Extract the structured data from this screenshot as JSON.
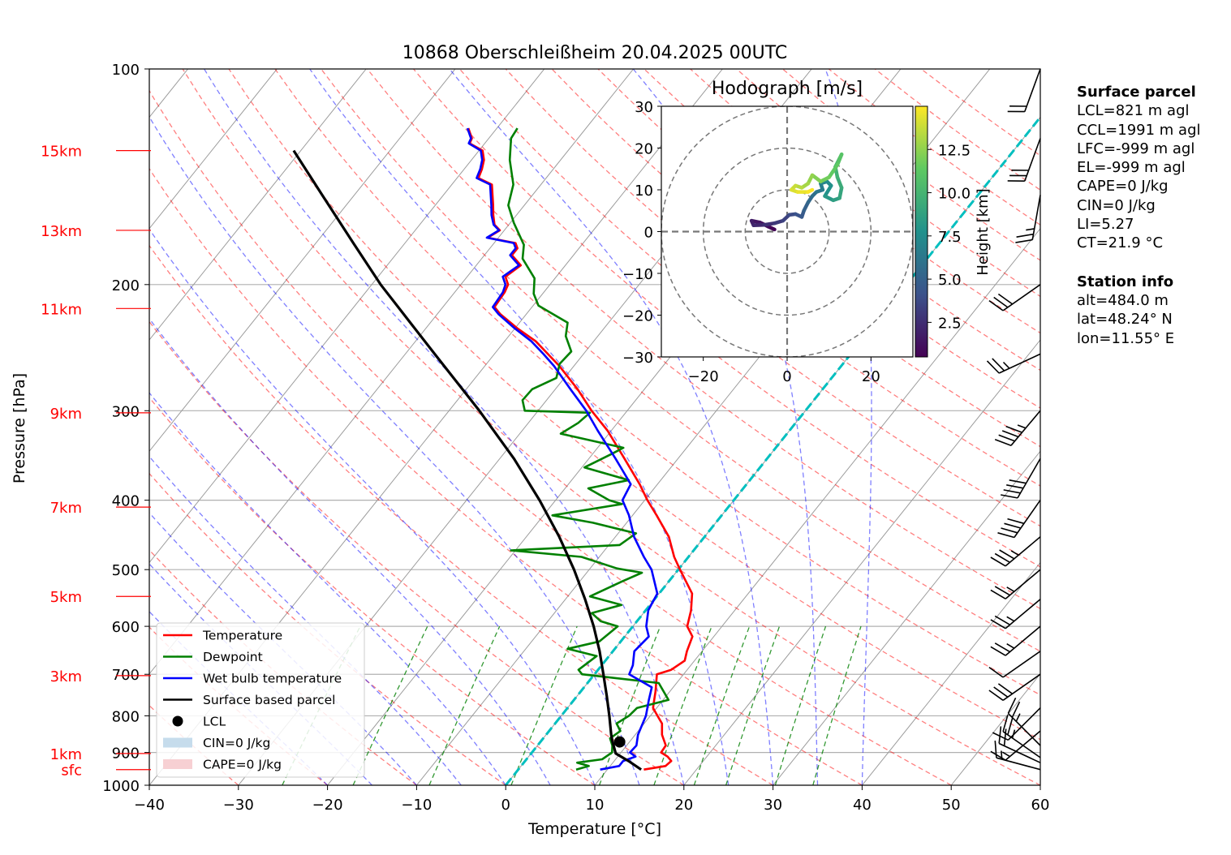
{
  "title": "10868 Oberschleißheim 20.04.2025 00UTC",
  "chart_data": {
    "type": "skew-t",
    "xlabel": "Temperature [°C]",
    "ylabel": "Pressure [hPa]",
    "xlim": [
      -40,
      60
    ],
    "ylim": [
      1000,
      100
    ],
    "x_ticks": [
      -40,
      -30,
      -20,
      -10,
      0,
      10,
      20,
      30,
      40,
      50,
      60
    ],
    "x_tick_labels": [
      "−40",
      "−30",
      "−20",
      "−10",
      "0",
      "10",
      "20",
      "30",
      "40",
      "50",
      "60"
    ],
    "y_ticks": [
      100,
      200,
      300,
      400,
      500,
      600,
      700,
      800,
      900,
      1000
    ],
    "y_tick_labels": [
      "100",
      "200",
      "300",
      "400",
      "500",
      "600",
      "700",
      "800",
      "900",
      "1000"
    ],
    "height_labels": [
      {
        "label": "15km",
        "p": 130
      },
      {
        "label": "13km",
        "p": 168
      },
      {
        "label": "11km",
        "p": 216
      },
      {
        "label": "9km",
        "p": 302
      },
      {
        "label": "7km",
        "p": 409
      },
      {
        "label": "5km",
        "p": 545
      },
      {
        "label": "3km",
        "p": 703
      },
      {
        "label": "1km",
        "p": 903
      },
      {
        "label": "sfc",
        "p": 951
      }
    ],
    "series": [
      {
        "name": "Temperature",
        "color": "#ff0000",
        "points": [
          [
            951,
            14.1
          ],
          [
            940,
            16.2
          ],
          [
            925,
            16.4
          ],
          [
            912,
            15.6
          ],
          [
            900,
            14.5
          ],
          [
            880,
            14.4
          ],
          [
            850,
            13.0
          ],
          [
            820,
            12.0
          ],
          [
            800,
            10.8
          ],
          [
            780,
            9.6
          ],
          [
            760,
            9.0
          ],
          [
            740,
            8.4
          ],
          [
            700,
            7.0
          ],
          [
            690,
            8.2
          ],
          [
            670,
            8.9
          ],
          [
            650,
            8.3
          ],
          [
            620,
            7.6
          ],
          [
            600,
            6.1
          ],
          [
            570,
            5.1
          ],
          [
            540,
            3.7
          ],
          [
            500,
            0.2
          ],
          [
            480,
            -1.6
          ],
          [
            450,
            -4.0
          ],
          [
            420,
            -7.3
          ],
          [
            400,
            -9.7
          ],
          [
            380,
            -12.0
          ],
          [
            350,
            -16.0
          ],
          [
            320,
            -20.4
          ],
          [
            300,
            -24.0
          ],
          [
            280,
            -27.5
          ],
          [
            260,
            -31.6
          ],
          [
            250,
            -34.0
          ],
          [
            240,
            -36.5
          ],
          [
            230,
            -39.8
          ],
          [
            220,
            -42.9
          ],
          [
            215,
            -44.2
          ],
          [
            205,
            -44.4
          ],
          [
            200,
            -44.7
          ],
          [
            195,
            -45.7
          ],
          [
            188,
            -45.0
          ],
          [
            182,
            -46.9
          ],
          [
            178,
            -46.9
          ],
          [
            175,
            -47.6
          ],
          [
            172,
            -51.2
          ],
          [
            168,
            -50.5
          ],
          [
            165,
            -51.6
          ],
          [
            160,
            -52.6
          ],
          [
            155,
            -53.5
          ],
          [
            145,
            -55.5
          ],
          [
            142,
            -57.6
          ],
          [
            138,
            -58.0
          ],
          [
            134,
            -58.6
          ],
          [
            130,
            -59.6
          ],
          [
            127,
            -61.7
          ],
          [
            125,
            -61.9
          ],
          [
            121,
            -63.2
          ]
        ]
      },
      {
        "name": "Dewpoint",
        "color": "#008000",
        "points": [
          [
            951,
            6.5
          ],
          [
            940,
            7.6
          ],
          [
            930,
            6.0
          ],
          [
            920,
            8.5
          ],
          [
            900,
            9.0
          ],
          [
            880,
            8.4
          ],
          [
            860,
            7.5
          ],
          [
            840,
            8.0
          ],
          [
            820,
            6.9
          ],
          [
            800,
            7.6
          ],
          [
            780,
            7.8
          ],
          [
            760,
            10.6
          ],
          [
            720,
            8.0
          ],
          [
            700,
            -1.4
          ],
          [
            690,
            -2.2
          ],
          [
            660,
            -1.4
          ],
          [
            645,
            -5.3
          ],
          [
            630,
            -2.4
          ],
          [
            600,
            -1.7
          ],
          [
            590,
            -4.1
          ],
          [
            575,
            -5.8
          ],
          [
            560,
            -3.2
          ],
          [
            545,
            -7.5
          ],
          [
            520,
            -5.3
          ],
          [
            505,
            -3.8
          ],
          [
            498,
            -7.0
          ],
          [
            480,
            -12.0
          ],
          [
            470,
            -20.5
          ],
          [
            462,
            -8.8
          ],
          [
            445,
            -8.0
          ],
          [
            430,
            -13.8
          ],
          [
            420,
            -19.0
          ],
          [
            405,
            -12.2
          ],
          [
            400,
            -14.0
          ],
          [
            385,
            -17.4
          ],
          [
            375,
            -13.6
          ],
          [
            360,
            -19.7
          ],
          [
            345,
            -17.9
          ],
          [
            338,
            -17.1
          ],
          [
            323,
            -25.4
          ],
          [
            312,
            -24.4
          ],
          [
            302,
            -24.0
          ],
          [
            300,
            -31.5
          ],
          [
            290,
            -32.7
          ],
          [
            280,
            -32.6
          ],
          [
            270,
            -30.9
          ],
          [
            258,
            -31.8
          ],
          [
            248,
            -31.6
          ],
          [
            236,
            -33.6
          ],
          [
            226,
            -34.6
          ],
          [
            214,
            -39.4
          ],
          [
            206,
            -41.0
          ],
          [
            196,
            -42.3
          ],
          [
            184,
            -45.4
          ],
          [
            176,
            -46.5
          ],
          [
            164,
            -49.6
          ],
          [
            155,
            -51.8
          ],
          [
            145,
            -53.1
          ],
          [
            134,
            -55.7
          ],
          [
            125,
            -57.5
          ],
          [
            121,
            -57.7
          ]
        ]
      },
      {
        "name": "Wet bulb temperature",
        "color": "#0000ff",
        "points": [
          [
            951,
            9.2
          ],
          [
            940,
            11.0
          ],
          [
            925,
            11.0
          ],
          [
            912,
            12.0
          ],
          [
            900,
            11.0
          ],
          [
            880,
            11.1
          ],
          [
            850,
            10.3
          ],
          [
            800,
            9.5
          ],
          [
            760,
            8.4
          ],
          [
            730,
            7.6
          ],
          [
            700,
            3.9
          ],
          [
            680,
            3.5
          ],
          [
            650,
            2.4
          ],
          [
            620,
            2.7
          ],
          [
            600,
            1.5
          ],
          [
            570,
            0.3
          ],
          [
            540,
            -0.2
          ],
          [
            500,
            -3.0
          ],
          [
            480,
            -5.0
          ],
          [
            450,
            -7.9
          ],
          [
            420,
            -10.4
          ],
          [
            400,
            -12.5
          ],
          [
            380,
            -13.0
          ],
          [
            350,
            -17.0
          ],
          [
            320,
            -21.5
          ],
          [
            300,
            -24.6
          ],
          [
            280,
            -28.3
          ],
          [
            260,
            -32.2
          ],
          [
            250,
            -34.5
          ],
          [
            240,
            -37.0
          ],
          [
            230,
            -40.1
          ],
          [
            220,
            -43.1
          ],
          [
            215,
            -44.4
          ],
          [
            205,
            -44.6
          ],
          [
            200,
            -45.0
          ],
          [
            195,
            -46.0
          ],
          [
            188,
            -45.2
          ],
          [
            182,
            -47.1
          ],
          [
            178,
            -47.1
          ],
          [
            175,
            -47.8
          ],
          [
            172,
            -51.3
          ],
          [
            168,
            -50.6
          ],
          [
            165,
            -51.7
          ],
          [
            160,
            -52.8
          ],
          [
            155,
            -53.7
          ],
          [
            145,
            -55.7
          ],
          [
            142,
            -57.8
          ],
          [
            138,
            -58.2
          ],
          [
            134,
            -58.8
          ],
          [
            130,
            -59.8
          ],
          [
            127,
            -61.8
          ],
          [
            125,
            -62.0
          ],
          [
            121,
            -63.3
          ]
        ]
      },
      {
        "name": "Surface based parcel",
        "color": "#000000",
        "points": [
          [
            951,
            13.8
          ],
          [
            925,
            11.6
          ],
          [
            903,
            9.5
          ],
          [
            870,
            8.1
          ],
          [
            850,
            7.3
          ],
          [
            800,
            5.4
          ],
          [
            750,
            3.3
          ],
          [
            700,
            1.0
          ],
          [
            650,
            -1.5
          ],
          [
            600,
            -4.4
          ],
          [
            550,
            -7.8
          ],
          [
            500,
            -11.7
          ],
          [
            450,
            -16.3
          ],
          [
            400,
            -21.8
          ],
          [
            350,
            -28.4
          ],
          [
            300,
            -36.6
          ],
          [
            250,
            -46.7
          ],
          [
            200,
            -59.0
          ],
          [
            175,
            -65.8
          ],
          [
            150,
            -73.6
          ],
          [
            130,
            -80.8
          ]
        ]
      }
    ],
    "lcl": {
      "p": 870,
      "t": 8.9
    },
    "legend": [
      "Temperature",
      "Dewpoint",
      "Wet bulb temperature",
      "Surface based parcel",
      "LCL",
      "CIN=0 J/kg",
      "CAPE=0 J/kg"
    ],
    "legend_position": "lower-left",
    "freezing_line": {
      "color": "#00bfbf"
    },
    "wind_barbs": [
      {
        "p": 951,
        "speed_kt": 15,
        "dir_deg": 285
      },
      {
        "p": 930,
        "speed_kt": 20,
        "dir_deg": 295
      },
      {
        "p": 915,
        "speed_kt": 25,
        "dir_deg": 305
      },
      {
        "p": 880,
        "speed_kt": 25,
        "dir_deg": 315
      },
      {
        "p": 840,
        "speed_kt": 15,
        "dir_deg": 230
      },
      {
        "p": 780,
        "speed_kt": 10,
        "dir_deg": 225
      },
      {
        "p": 700,
        "speed_kt": 30,
        "dir_deg": 235
      },
      {
        "p": 650,
        "speed_kt": 10,
        "dir_deg": 235
      },
      {
        "p": 600,
        "speed_kt": 25,
        "dir_deg": 230
      },
      {
        "p": 550,
        "speed_kt": 25,
        "dir_deg": 230
      },
      {
        "p": 500,
        "speed_kt": 25,
        "dir_deg": 230
      },
      {
        "p": 450,
        "speed_kt": 35,
        "dir_deg": 230
      },
      {
        "p": 400,
        "speed_kt": 40,
        "dir_deg": 215
      },
      {
        "p": 350,
        "speed_kt": 40,
        "dir_deg": 210
      },
      {
        "p": 300,
        "speed_kt": 45,
        "dir_deg": 220
      },
      {
        "p": 250,
        "speed_kt": 25,
        "dir_deg": 245
      },
      {
        "p": 200,
        "speed_kt": 30,
        "dir_deg": 235
      },
      {
        "p": 150,
        "speed_kt": 25,
        "dir_deg": 190
      },
      {
        "p": 125,
        "speed_kt": 30,
        "dir_deg": 200
      },
      {
        "p": 100,
        "speed_kt": 20,
        "dir_deg": 200
      }
    ],
    "hodograph": {
      "title": "Hodograph [m/s]",
      "xlim": [
        -30,
        30
      ],
      "ylim": [
        -30,
        30
      ],
      "ticks": [
        -30,
        -20,
        -10,
        0,
        10,
        20,
        30
      ],
      "tick_labels": [
        "−30",
        "−20",
        "−10",
        "0",
        "10",
        "20",
        "30"
      ],
      "x_ticks": [
        -20,
        0,
        20
      ],
      "x_tick_labels": [
        "−20",
        "0",
        "20"
      ],
      "rings": [
        10,
        20,
        30
      ],
      "colorbar_label": "Height [km]",
      "colorbar_range": [
        0.5,
        15
      ],
      "colorbar_ticks": [
        2.5,
        5.0,
        7.5,
        10.0,
        12.5
      ],
      "colorbar_tick_labels": [
        "2.5",
        "5.0",
        "7.5",
        "10.0",
        "12.5"
      ],
      "points": [
        [
          -3.0,
          0.5,
          0.5
        ],
        [
          -4.5,
          1.2,
          0.8
        ],
        [
          -6.5,
          2.2,
          1.2
        ],
        [
          -8.5,
          2.6,
          1.6
        ],
        [
          -8.0,
          1.5,
          2.0
        ],
        [
          -5.5,
          1.6,
          2.4
        ],
        [
          -3.0,
          2.0,
          2.8
        ],
        [
          -1.0,
          2.6,
          3.2
        ],
        [
          0.5,
          4.0,
          3.6
        ],
        [
          2.0,
          4.2,
          4.0
        ],
        [
          3.5,
          3.5,
          4.4
        ],
        [
          4.0,
          5.0,
          4.8
        ],
        [
          5.0,
          7.0,
          5.2
        ],
        [
          6.0,
          8.5,
          5.6
        ],
        [
          7.0,
          9.5,
          6.0
        ],
        [
          8.5,
          10.0,
          6.4
        ],
        [
          8.0,
          11.5,
          6.8
        ],
        [
          9.5,
          12.0,
          7.2
        ],
        [
          10.5,
          11.0,
          7.6
        ],
        [
          9.0,
          8.5,
          8.0
        ],
        [
          11.0,
          7.5,
          8.4
        ],
        [
          12.5,
          8.0,
          8.8
        ],
        [
          13.0,
          10.5,
          9.2
        ],
        [
          12.0,
          13.0,
          9.6
        ],
        [
          11.5,
          15.5,
          10.0
        ],
        [
          12.5,
          17.5,
          10.4
        ],
        [
          13.0,
          18.5,
          10.8
        ],
        [
          12.0,
          16.0,
          11.2
        ],
        [
          10.0,
          13.0,
          11.6
        ],
        [
          8.0,
          12.0,
          12.0
        ],
        [
          6.0,
          13.5,
          12.4
        ],
        [
          5.0,
          11.5,
          12.8
        ],
        [
          3.5,
          10.5,
          13.2
        ],
        [
          2.0,
          11.0,
          13.6
        ],
        [
          1.0,
          10.0,
          14.0
        ],
        [
          2.5,
          9.5,
          14.4
        ],
        [
          5.0,
          9.5,
          14.8
        ],
        [
          6.0,
          10.0,
          15.0
        ]
      ]
    }
  },
  "surface_parcel": {
    "header": "Surface parcel",
    "lines": [
      "LCL=821 m agl",
      "CCL=1991 m agl",
      "LFC=-999 m agl",
      "EL=-999 m agl",
      "CAPE=0 J/kg",
      "CIN=0 J/kg",
      "LI=5.27",
      "CT=21.9 °C"
    ]
  },
  "station_info": {
    "header": "Station info",
    "lines": [
      "alt=484.0 m",
      "lat=48.24° N",
      "lon=11.55° E"
    ]
  }
}
